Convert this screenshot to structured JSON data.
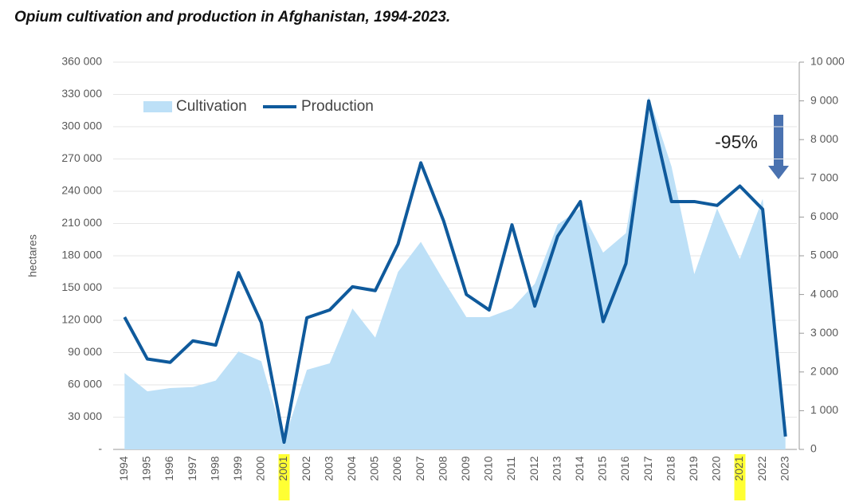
{
  "chart_data": {
    "type": "area-line",
    "title": "Opium cultivation and production in Afghanistan, 1994-2023.",
    "y_label": "hectares",
    "annotation": "-95%",
    "categories": [
      "1994",
      "1995",
      "1996",
      "1997",
      "1998",
      "1999",
      "2000",
      "2001",
      "2002",
      "2003",
      "2004",
      "2005",
      "2006",
      "2007",
      "2008",
      "2009",
      "2010",
      "2011",
      "2012",
      "2013",
      "2014",
      "2015",
      "2016",
      "2017",
      "2018",
      "2019",
      "2020",
      "2021",
      "2022",
      "2023"
    ],
    "highlighted": [
      7,
      27
    ],
    "highlight_color": "#ffff33",
    "series": [
      {
        "name": "Cultivation",
        "color": "#bde0f7",
        "axis": "y",
        "values": [
          71000,
          54000,
          57000,
          58000,
          64000,
          91000,
          82000,
          8000,
          74000,
          80000,
          131000,
          104000,
          165000,
          193000,
          157000,
          123000,
          123000,
          131000,
          154000,
          209000,
          224000,
          183000,
          201000,
          328000,
          263000,
          163000,
          224000,
          177000,
          233000,
          10800
        ]
      },
      {
        "name": "Production",
        "color": "#0f5a9c",
        "axis": "y2",
        "values": [
          3416,
          2335,
          2248,
          2804,
          2693,
          4565,
          3276,
          185,
          3400,
          3600,
          4200,
          4100,
          5300,
          7400,
          5900,
          4000,
          3600,
          5800,
          3700,
          5500,
          6400,
          3300,
          4800,
          9000,
          6400,
          6400,
          6300,
          6800,
          6200,
          333
        ]
      }
    ],
    "ylim": [
      0,
      360000
    ],
    "yticks": [
      {
        "value": 0,
        "label": "-"
      },
      {
        "value": 30000,
        "label": "30 000"
      },
      {
        "value": 60000,
        "label": "60 000"
      },
      {
        "value": 90000,
        "label": "90 000"
      },
      {
        "value": 120000,
        "label": "120 000"
      },
      {
        "value": 150000,
        "label": "150 000"
      },
      {
        "value": 180000,
        "label": "180 000"
      },
      {
        "value": 210000,
        "label": "210 000"
      },
      {
        "value": 240000,
        "label": "240 000"
      },
      {
        "value": 270000,
        "label": "270 000"
      },
      {
        "value": 300000,
        "label": "300 000"
      },
      {
        "value": 330000,
        "label": "330 000"
      },
      {
        "value": 360000,
        "label": "360 000"
      }
    ],
    "y2lim": [
      0,
      10000
    ],
    "y2ticks": [
      0,
      {
        "value": 1000,
        "label": "1 000"
      },
      {
        "value": 2000,
        "label": "2 000"
      },
      {
        "value": 3000,
        "label": "3 000"
      },
      {
        "value": 4000,
        "label": "4 000"
      },
      {
        "value": 5000,
        "label": "5 000"
      },
      {
        "value": 6000,
        "label": "6 000"
      },
      {
        "value": 7000,
        "label": "7 000"
      },
      {
        "value": 8000,
        "label": "8 000"
      },
      {
        "value": 9000,
        "label": "9 000"
      },
      {
        "value": 10000,
        "label": "10 000"
      }
    ],
    "grid": true
  }
}
